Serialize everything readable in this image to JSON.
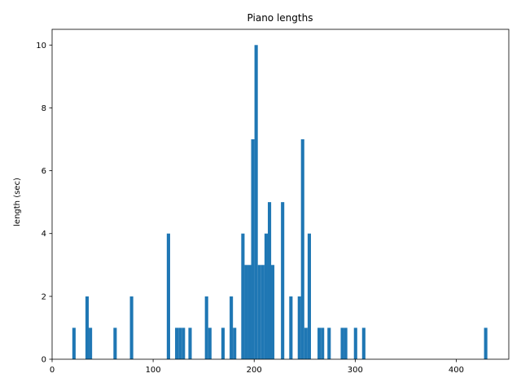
{
  "chart_data": {
    "type": "bar",
    "title": "Piano lengths",
    "xlabel": "",
    "ylabel": "length (sec)",
    "xlim": [
      0,
      452
    ],
    "ylim": [
      0,
      10.5
    ],
    "xticks": [
      0,
      100,
      200,
      300,
      400
    ],
    "yticks": [
      0,
      2,
      4,
      6,
      8,
      10
    ],
    "grid": false,
    "bar_color": "#1f77b4",
    "bin_width": 3.3,
    "bars": [
      {
        "x": 20.0,
        "value": 1
      },
      {
        "x": 33.0,
        "value": 2
      },
      {
        "x": 36.3,
        "value": 1
      },
      {
        "x": 60.7,
        "value": 1
      },
      {
        "x": 77.0,
        "value": 2
      },
      {
        "x": 113.5,
        "value": 4
      },
      {
        "x": 121.7,
        "value": 1
      },
      {
        "x": 125.0,
        "value": 1
      },
      {
        "x": 128.3,
        "value": 1
      },
      {
        "x": 134.9,
        "value": 1
      },
      {
        "x": 151.2,
        "value": 2
      },
      {
        "x": 154.5,
        "value": 1
      },
      {
        "x": 167.5,
        "value": 1
      },
      {
        "x": 175.7,
        "value": 2
      },
      {
        "x": 179.0,
        "value": 1
      },
      {
        "x": 187.2,
        "value": 4
      },
      {
        "x": 190.5,
        "value": 3
      },
      {
        "x": 193.8,
        "value": 3
      },
      {
        "x": 197.0,
        "value": 7
      },
      {
        "x": 200.3,
        "value": 10
      },
      {
        "x": 203.6,
        "value": 3
      },
      {
        "x": 206.9,
        "value": 3
      },
      {
        "x": 210.2,
        "value": 4
      },
      {
        "x": 213.5,
        "value": 5
      },
      {
        "x": 216.7,
        "value": 3
      },
      {
        "x": 226.5,
        "value": 5
      },
      {
        "x": 234.7,
        "value": 2
      },
      {
        "x": 243.1,
        "value": 2
      },
      {
        "x": 246.3,
        "value": 7
      },
      {
        "x": 249.6,
        "value": 1
      },
      {
        "x": 252.9,
        "value": 4
      },
      {
        "x": 262.7,
        "value": 1
      },
      {
        "x": 266.0,
        "value": 1
      },
      {
        "x": 272.5,
        "value": 1
      },
      {
        "x": 285.6,
        "value": 1
      },
      {
        "x": 288.9,
        "value": 1
      },
      {
        "x": 298.7,
        "value": 1
      },
      {
        "x": 306.8,
        "value": 1
      },
      {
        "x": 427.5,
        "value": 1
      }
    ]
  }
}
